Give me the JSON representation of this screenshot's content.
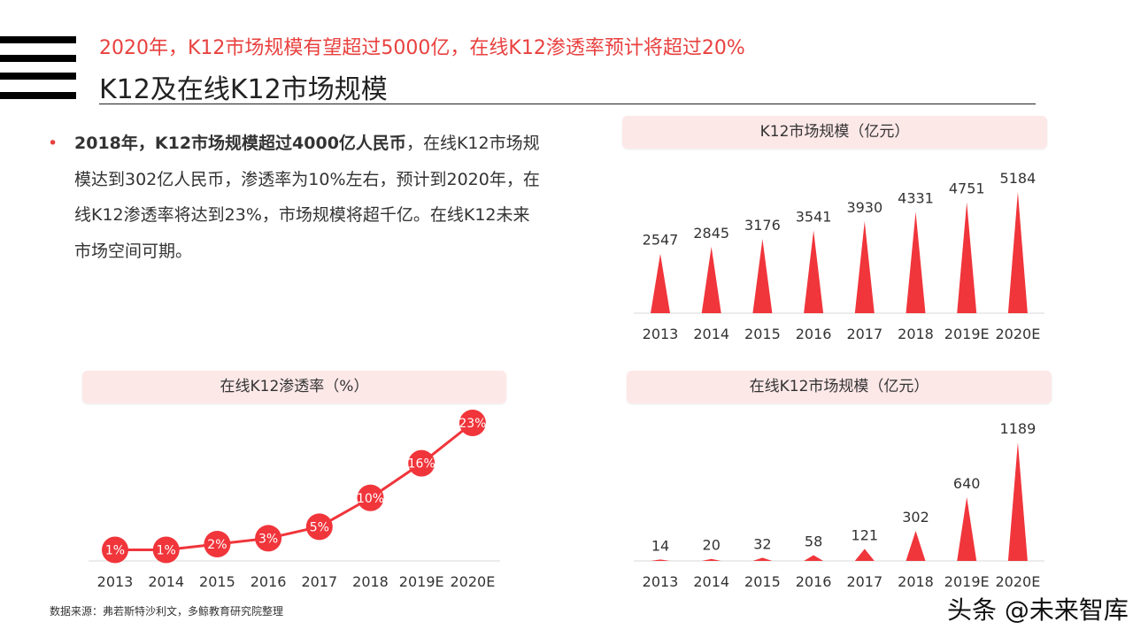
{
  "header": {
    "subtitle": "2020年，K12市场规模有望超过5000亿，在线K12渗透率预计将超过20%",
    "title": "K12及在线K12市场规模"
  },
  "body": {
    "bold": "2018年，K12市场规模超过4000亿人民币",
    "rest": "，在线K12市场规模达到302亿人民币，渗透率为10%左右，预计到2020年，在线K12渗透率将达到23%，市场规模将超千亿。在线K12未来市场空间可期。",
    "bullet": "•"
  },
  "footer": {
    "source": "数据来源：弗若斯特沙利文，多鲸教育研究院整理",
    "watermark": "头条 @未来智库"
  },
  "colors": {
    "accent": "#e8413f",
    "bar": "#f0353b"
  },
  "chart_data": [
    {
      "type": "bar",
      "title": "K12市场规模（亿元）",
      "categories": [
        "2013",
        "2014",
        "2015",
        "2016",
        "2017",
        "2018",
        "2019E",
        "2020E"
      ],
      "values": [
        2547,
        2845,
        3176,
        3541,
        3930,
        4331,
        4751,
        5184
      ],
      "ylim": [
        0,
        5184
      ],
      "grid": false
    },
    {
      "type": "line",
      "title": "在线K12渗透率（%）",
      "categories": [
        "2013",
        "2014",
        "2015",
        "2016",
        "2017",
        "2018",
        "2019E",
        "2020E"
      ],
      "values": [
        1,
        1,
        2,
        3,
        5,
        10,
        16,
        23
      ],
      "labels": [
        "1%",
        "1%",
        "2%",
        "3%",
        "5%",
        "10%",
        "16%",
        "23%"
      ],
      "ylim": [
        0,
        23
      ],
      "grid": false
    },
    {
      "type": "bar",
      "title": "在线K12市场规模（亿元）",
      "categories": [
        "2013",
        "2014",
        "2015",
        "2016",
        "2017",
        "2018",
        "2019E",
        "2020E"
      ],
      "values": [
        14,
        20,
        32,
        58,
        121,
        302,
        640,
        1189
      ],
      "ylim": [
        0,
        1189
      ],
      "grid": false
    }
  ]
}
